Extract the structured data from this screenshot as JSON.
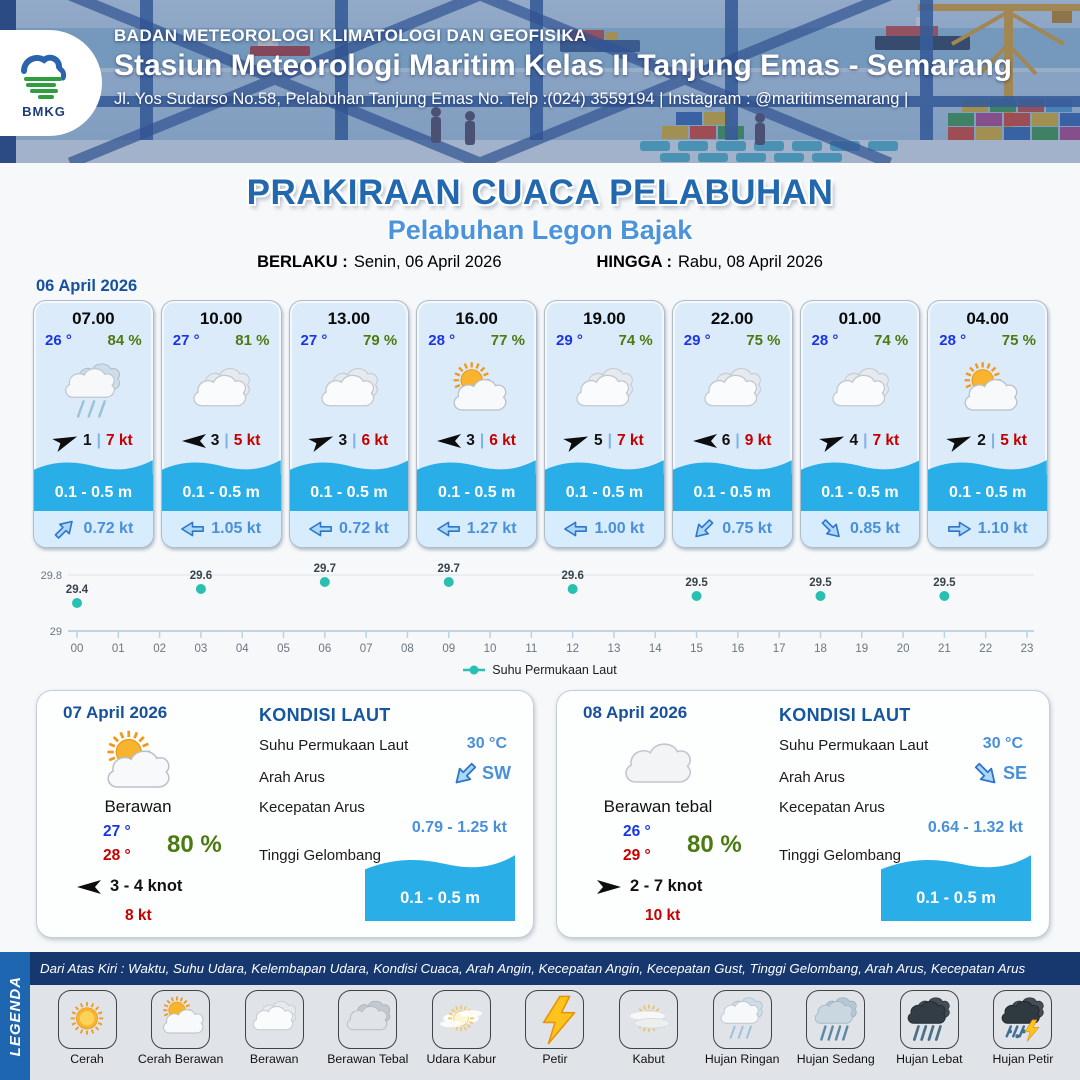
{
  "header": {
    "agency": "BADAN METEOROLOGI KLIMATOLOGI DAN GEOFISIKA",
    "station": "Stasiun Meteorologi Maritim Kelas II Tanjung Emas - Semarang",
    "address": "Jl. Yos Sudarso No.58, Pelabuhan Tanjung Emas No. Telp :(024) 3559194 | Instagram : @maritimsemarang |",
    "logo_text": "BMKG"
  },
  "title": {
    "main": "PRAKIRAAN CUACA PELABUHAN",
    "port": "Pelabuhan Legon Bajak",
    "valid_from_label": "BERLAKU :",
    "valid_from": "Senin, 06 April 2026",
    "valid_to_label": "HINGGA :",
    "valid_to": "Rabu, 08 April 2026"
  },
  "forecast_day1": {
    "date": "06 April 2026",
    "cards": [
      {
        "time": "07.00",
        "temp": "26 °",
        "humidity": "84 %",
        "icon": "hujan-ringan",
        "wind_dir": "ENE",
        "wind_speed": "1",
        "gust": "7 kt",
        "wave": "0.1 - 0.5 m",
        "current_dir": "NE",
        "current_speed": "0.72 kt"
      },
      {
        "time": "10.00",
        "temp": "27 °",
        "humidity": "81 %",
        "icon": "berawan",
        "wind_dir": "W",
        "wind_speed": "3",
        "gust": "5 kt",
        "wave": "0.1 - 0.5 m",
        "current_dir": "W",
        "current_speed": "1.05 kt"
      },
      {
        "time": "13.00",
        "temp": "27 °",
        "humidity": "79 %",
        "icon": "berawan",
        "wind_dir": "ENE",
        "wind_speed": "3",
        "gust": "6 kt",
        "wave": "0.1 - 0.5 m",
        "current_dir": "W",
        "current_speed": "0.72 kt"
      },
      {
        "time": "16.00",
        "temp": "28 °",
        "humidity": "77 %",
        "icon": "cerah-berawan",
        "wind_dir": "W",
        "wind_speed": "3",
        "gust": "6 kt",
        "wave": "0.1 - 0.5 m",
        "current_dir": "W",
        "current_speed": "1.27 kt"
      },
      {
        "time": "19.00",
        "temp": "29 °",
        "humidity": "74 %",
        "icon": "berawan",
        "wind_dir": "ENE",
        "wind_speed": "5",
        "gust": "7 kt",
        "wave": "0.1 - 0.5 m",
        "current_dir": "W",
        "current_speed": "1.00 kt"
      },
      {
        "time": "22.00",
        "temp": "29 °",
        "humidity": "75 %",
        "icon": "berawan",
        "wind_dir": "W",
        "wind_speed": "6",
        "gust": "9 kt",
        "wave": "0.1 - 0.5 m",
        "current_dir": "SW",
        "current_speed": "0.75 kt"
      },
      {
        "time": "01.00",
        "temp": "28 °",
        "humidity": "74 %",
        "icon": "berawan",
        "wind_dir": "ENE",
        "wind_speed": "4",
        "gust": "7 kt",
        "wave": "0.1 - 0.5 m",
        "current_dir": "SE",
        "current_speed": "0.85 kt"
      },
      {
        "time": "04.00",
        "temp": "28 °",
        "humidity": "75 %",
        "icon": "cerah-berawan",
        "wind_dir": "ENE",
        "wind_speed": "2",
        "gust": "5 kt",
        "wave": "0.1 - 0.5 m",
        "current_dir": "E",
        "current_speed": "1.10 kt"
      }
    ]
  },
  "chart_data": {
    "type": "scatter",
    "title": "",
    "legend": "Suhu Permukaan Laut",
    "x": [
      0,
      3,
      6,
      9,
      12,
      15,
      18,
      21
    ],
    "values": [
      29.4,
      29.6,
      29.7,
      29.7,
      29.6,
      29.5,
      29.5,
      29.5
    ],
    "x_tick_labels": [
      "00",
      "01",
      "02",
      "03",
      "04",
      "05",
      "06",
      "07",
      "08",
      "09",
      "10",
      "11",
      "12",
      "13",
      "14",
      "15",
      "16",
      "17",
      "18",
      "19",
      "20",
      "21",
      "22",
      "23"
    ],
    "y_ticks": [
      29,
      29.8
    ],
    "ylim": [
      29,
      29.8
    ],
    "grid": true,
    "legend_position": "bottom",
    "dot_color": "#28c0b0"
  },
  "panels": [
    {
      "date": "07 April 2026",
      "icon": "cerah-berawan",
      "condition": "Berawan",
      "temp_min": "27 °",
      "temp_max": "28 °",
      "humidity": "80 %",
      "wind_dir": "W",
      "wind_range": "3 - 4 knot",
      "gust": "8 kt",
      "sea": {
        "heading": "KONDISI LAUT",
        "sst_label": "Suhu Permukaan Laut",
        "sst": "30 °C",
        "current_dir_label": "Arah Arus",
        "current_dir": "SW",
        "current_speed_label": "Kecepatan Arus",
        "current_speed": "0.79 - 1.25 kt",
        "wave_label": "Tinggi Gelombang",
        "wave": "0.1 - 0.5 m"
      }
    },
    {
      "date": "08 April 2026",
      "icon": "cloud",
      "condition": "Berawan tebal",
      "temp_min": "26 °",
      "temp_max": "29 °",
      "humidity": "80 %",
      "wind_dir": "E",
      "wind_range": "2 - 7 knot",
      "gust": "10 kt",
      "sea": {
        "heading": "KONDISI LAUT",
        "sst_label": "Suhu Permukaan Laut",
        "sst": "30 °C",
        "current_dir_label": "Arah Arus",
        "current_dir": "SE",
        "current_speed_label": "Kecepatan Arus",
        "current_speed": "0.64 - 1.32 kt",
        "wave_label": "Tinggi Gelombang",
        "wave": "0.1 - 0.5 m"
      }
    }
  ],
  "legend": {
    "strip": "LEGENDA",
    "description": "Dari Atas Kiri : Waktu, Suhu Udara, Kelembapan Udara, Kondisi Cuaca, Arah Angin, Kecepatan Angin, Kecepatan Gust, Tinggi Gelombang, Arah Arus, Kecepatan Arus",
    "items": [
      {
        "label": "Cerah",
        "icon": "cerah"
      },
      {
        "label": "Cerah Berawan",
        "icon": "cerah-berawan"
      },
      {
        "label": "Berawan",
        "icon": "berawan"
      },
      {
        "label": "Berawan Tebal",
        "icon": "berawan-tebal"
      },
      {
        "label": "Udara Kabur",
        "icon": "udara-kabur"
      },
      {
        "label": "Petir",
        "icon": "petir"
      },
      {
        "label": "Kabut",
        "icon": "kabut"
      },
      {
        "label": "Hujan Ringan",
        "icon": "hujan-ringan"
      },
      {
        "label": "Hujan Sedang",
        "icon": "hujan-sedang"
      },
      {
        "label": "Hujan Lebat",
        "icon": "hujan-lebat"
      },
      {
        "label": "Hujan Petir",
        "icon": "hujan-petir"
      }
    ]
  },
  "colors": {
    "title_blue": "#2268ae",
    "subtitle_blue": "#4b94db",
    "date_blue": "#17519e",
    "temp_blue": "#1a35e8",
    "humidity_green": "#4a7a10",
    "gust_red": "#c40000",
    "wave_blue": "#29aee8",
    "current_blue": "#4a90d9",
    "sst_dot_teal": "#28c0b0",
    "legend_strip_blue": "#1f66b0",
    "legend_bar_navy": "#17386e"
  }
}
